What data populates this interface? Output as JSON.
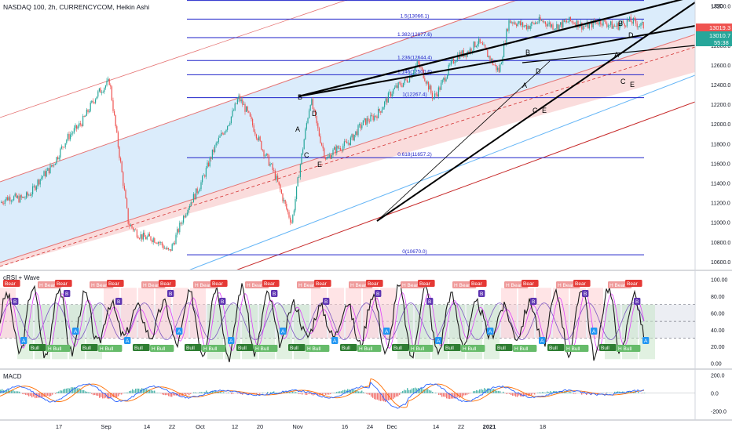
{
  "header": {
    "symbol_title": "NASDAQ 100, 2h, CURRENCYCOM, Heikin Ashi",
    "currency": "USD"
  },
  "colors": {
    "bg": "#ffffff",
    "up": "#26a69a",
    "down": "#ef5350",
    "channel_blue": "#bbdefb",
    "channel_red": "#f8c8c8",
    "fib_line": "#1e22c9",
    "trend_black": "#000000",
    "axis_text": "#131722",
    "price_tag_red": "#ef5350",
    "price_tag_green": "#26a69a",
    "bull_tag": "#2e7d32",
    "bear_tag": "#e53935",
    "hbull_tag": "#66bb6a",
    "hbear_tag": "#ef9a9a",
    "a_tag": "#2196f3",
    "b_tag": "#5e35b1"
  },
  "chart_data": [
    {
      "type": "candlestick",
      "title": "NASDAQ 100, 2h, CURRENCYCOM, Heikin Ashi",
      "x_tick_labels": [
        "17",
        "Sep",
        "14",
        "22",
        "Oct",
        "12",
        "20",
        "Nov",
        "16",
        "24",
        "Dec",
        "14",
        "22",
        "2021",
        "18"
      ],
      "y_tick_labels": [
        "13200.0",
        "13000.0",
        "12800.0",
        "12600.0",
        "12400.0",
        "12200.0",
        "12000.0",
        "11800.0",
        "11600.0",
        "11400.0",
        "11200.0",
        "11000.0",
        "10800.0",
        "10600.0"
      ],
      "ylim": [
        10520,
        13260
      ],
      "price_labels": {
        "last_red": "13019.3",
        "last_green": "13010.7",
        "timer": "55:38"
      },
      "fib_levels": [
        {
          "label": "1.618(13254.6)",
          "value": 13254.6
        },
        {
          "label": "1.5(13066.1)",
          "value": 13066.1
        },
        {
          "label": "1.382(12877.6)",
          "value": 12877.6
        },
        {
          "label": "1.236(12644.4)",
          "value": 12644.4
        },
        {
          "label": "1.146(12500.6)",
          "value": 12500.6
        },
        {
          "label": "1(12267.4)",
          "value": 12267.4
        },
        {
          "label": "0.618(11657.2)",
          "value": 11657.2
        },
        {
          "label": "0(10670.0)",
          "value": 10670.0
        }
      ],
      "wave_labels": [
        "A",
        "B",
        "C",
        "D",
        "E",
        "A",
        "B",
        "C",
        "D",
        "E",
        "A",
        "B",
        "C",
        "D",
        "E"
      ],
      "anchor_points": [
        {
          "x": "Sep 2",
          "y": 12460
        },
        {
          "x": "Sep 8",
          "y": 10960
        },
        {
          "x": "Sep 21",
          "y": 10720
        },
        {
          "x": "Oct 13",
          "y": 12260
        },
        {
          "x": "Oct 19",
          "y": 11900
        },
        {
          "x": "Oct 30",
          "y": 11020
        },
        {
          "x": "Nov 5",
          "y": 12250
        },
        {
          "x": "Nov 10",
          "y": 11630
        },
        {
          "x": "Nov 24",
          "y": 12050
        },
        {
          "x": "Dec 9",
          "y": 12600
        },
        {
          "x": "Dec 14",
          "y": 12280
        },
        {
          "x": "Dec 22",
          "y": 12700
        },
        {
          "x": "Dec 28",
          "y": 12820
        },
        {
          "x": "Jan 4",
          "y": 12560
        },
        {
          "x": "Jan 7",
          "y": 13019
        }
      ]
    },
    {
      "type": "line",
      "title": "cRSI + Wave",
      "y_tick_labels": [
        "100.00",
        "80.00",
        "60.00",
        "40.00",
        "20.00",
        "0.00"
      ],
      "ylim": [
        -5,
        108
      ],
      "bands": [
        70,
        50,
        30
      ],
      "signal_tag_texts": [
        "Bear",
        "Bull",
        "H Bear",
        "H Bull",
        "A",
        "B"
      ]
    },
    {
      "type": "bar",
      "title": "MACD",
      "y_tick_labels": [
        "200.0",
        "0.0",
        "-200.0"
      ],
      "ylim": [
        -290,
        240
      ]
    }
  ]
}
